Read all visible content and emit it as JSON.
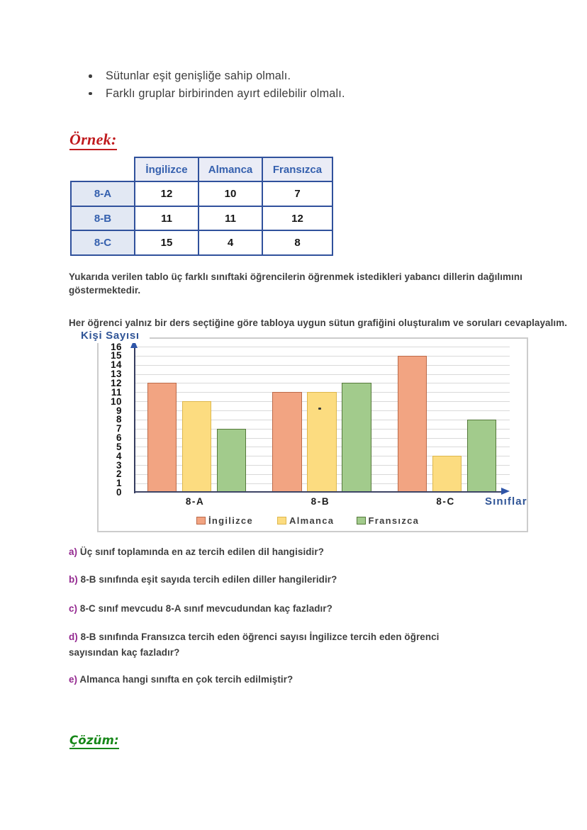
{
  "bullets": [
    "Sütunlar eşit genişliğe sahip olmalı.",
    "Farklı gruplar birbirinden ayırt edilebilir olmalı."
  ],
  "example_heading": "Örnek:",
  "solution_heading": "Çözüm:",
  "table": {
    "col_headers": [
      "İngilizce",
      "Almanca",
      "Fransızca"
    ],
    "rows": [
      {
        "label": "8-A",
        "values": [
          "12",
          "10",
          "7"
        ]
      },
      {
        "label": "8-B",
        "values": [
          "11",
          "11",
          "12"
        ]
      },
      {
        "label": "8-C",
        "values": [
          "15",
          "4",
          "8"
        ]
      }
    ]
  },
  "paragraphs": {
    "p1": [
      "Yukarıda verilen tablo üç farklı sınıftaki öğrencilerin öğrenmek istedikleri yabancı dillerin dağılımını",
      "göstermektedir."
    ],
    "p2": "Her öğrenci yalnız bir ders seçtiğine göre tabloya uygun sütun grafiğini oluşturalım ve soruları cevaplayalım."
  },
  "chart_data": {
    "type": "bar",
    "title": "",
    "ylabel": "Kişi Sayısı",
    "xlabel": "Sınıflar",
    "categories": [
      "8-A",
      "8-B",
      "8-C"
    ],
    "series": [
      {
        "name": "İngilizce",
        "values": [
          12,
          11,
          15
        ],
        "fill": "#f2a482",
        "border": "#bc6a49"
      },
      {
        "name": "Almanca",
        "values": [
          10,
          11,
          4
        ],
        "fill": "#fcdc80",
        "border": "#ddb74d"
      },
      {
        "name": "Fransızca",
        "values": [
          7,
          12,
          8
        ],
        "fill": "#a2cb8c",
        "border": "#55793b"
      }
    ],
    "ylim": [
      0,
      16
    ],
    "ytick_step": 1,
    "grid": true,
    "legend_position": "bottom",
    "axis_color": "#3e4566",
    "arrow_color": "#2e55a8",
    "label_color": "#2f5496"
  },
  "questions": [
    {
      "letter": "a)",
      "text": "Üç sınıf toplamında en az tercih edilen dil hangisidir?"
    },
    {
      "letter": "b)",
      "text": "8-B sınıfında eşit sayıda tercih edilen diller hangileridir?"
    },
    {
      "letter": "c)",
      "text": "8-C sınıf mevcudu 8-A sınıf mevcudundan kaç fazladır?"
    },
    {
      "letter": "d)",
      "text": [
        "8-B sınıfında Fransızca tercih eden öğrenci sayısı İngilizce tercih eden öğrenci",
        "sayısından kaç fazladır?"
      ]
    },
    {
      "letter": "e)",
      "text": "Almanca hangi sınıfta en çok tercih edilmiştir?"
    }
  ]
}
